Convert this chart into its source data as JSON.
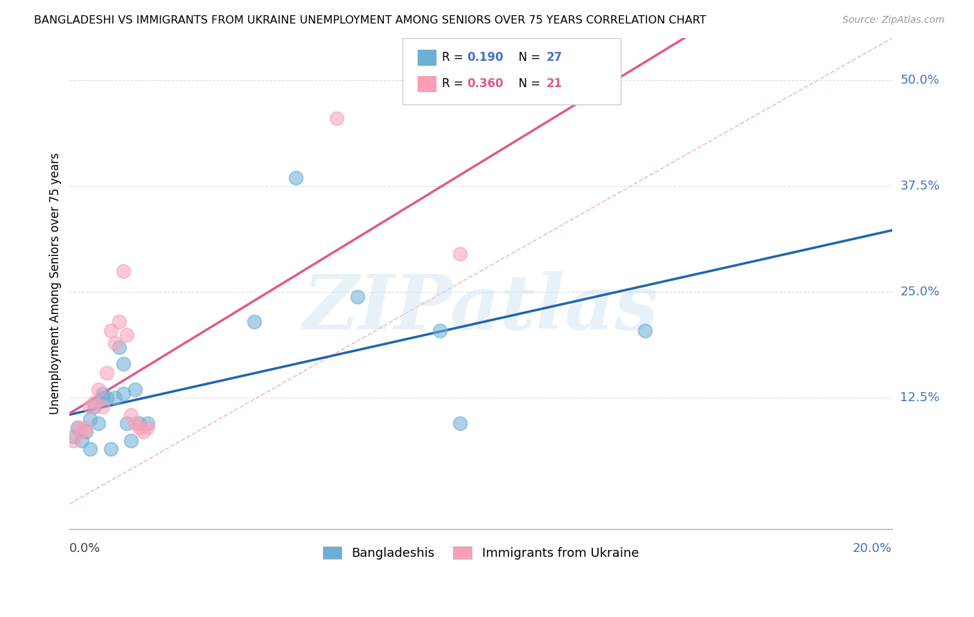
{
  "title": "BANGLADESHI VS IMMIGRANTS FROM UKRAINE UNEMPLOYMENT AMONG SENIORS OVER 75 YEARS CORRELATION CHART",
  "source": "Source: ZipAtlas.com",
  "ylabel": "Unemployment Among Seniors over 75 years",
  "ytick_labels": [
    "12.5%",
    "25.0%",
    "37.5%",
    "50.0%"
  ],
  "ytick_values": [
    12.5,
    25.0,
    37.5,
    50.0
  ],
  "xlim": [
    0.0,
    20.0
  ],
  "ylim": [
    -3.0,
    55.0
  ],
  "color_blue": "#6baed6",
  "color_blue_line": "#2166ac",
  "color_pink": "#fa9fb5",
  "color_pink_line": "#e05a8a",
  "watermark": "ZIPatlas",
  "bangladeshi_x": [
    0.1,
    0.2,
    0.3,
    0.4,
    0.5,
    0.5,
    0.6,
    0.7,
    0.8,
    0.8,
    0.9,
    1.0,
    1.1,
    1.2,
    1.3,
    1.3,
    1.4,
    1.5,
    1.6,
    1.7,
    1.9,
    4.5,
    5.5,
    7.0,
    9.0,
    9.5,
    14.0
  ],
  "bangladeshi_y": [
    8.0,
    9.0,
    7.5,
    8.5,
    6.5,
    10.0,
    11.5,
    9.5,
    12.5,
    13.0,
    12.5,
    6.5,
    12.5,
    18.5,
    13.0,
    16.5,
    9.5,
    7.5,
    13.5,
    9.5,
    9.5,
    21.5,
    38.5,
    24.5,
    20.5,
    9.5,
    20.5
  ],
  "ukraine_x": [
    0.1,
    0.2,
    0.3,
    0.4,
    0.5,
    0.6,
    0.7,
    0.8,
    0.9,
    1.0,
    1.1,
    1.2,
    1.3,
    1.4,
    1.5,
    1.6,
    1.7,
    1.8,
    1.9,
    6.5,
    9.5
  ],
  "ukraine_y": [
    7.5,
    9.0,
    8.5,
    9.0,
    11.5,
    12.0,
    13.5,
    11.5,
    15.5,
    20.5,
    19.0,
    21.5,
    27.5,
    20.0,
    10.5,
    9.5,
    9.0,
    8.5,
    9.0,
    45.5,
    29.5
  ],
  "diag_line_x": [
    0.0,
    20.0
  ],
  "diag_line_y": [
    0.0,
    55.0
  ]
}
